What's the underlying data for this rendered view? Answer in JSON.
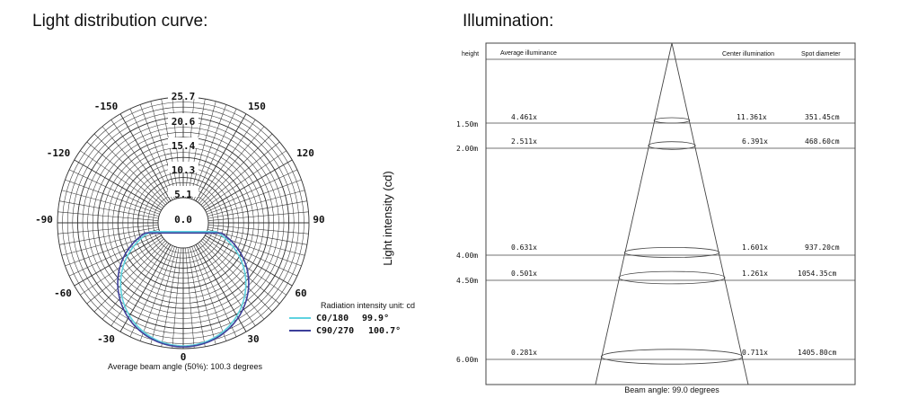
{
  "titles": {
    "light_curve": "Light distribution curve:",
    "illumination": "Illumination:"
  },
  "polar": {
    "radial_labels": [
      "25.7",
      "20.6",
      "15.4",
      "10.3",
      "5.1",
      "0.0"
    ],
    "angle_labels": {
      "a_n150": "-150",
      "a_150": "150",
      "a_n120": "-120",
      "a_120": "120",
      "a_n90": "-90",
      "a_90": "90",
      "a_n60": "-60",
      "a_60": "60",
      "a_n30": "-30",
      "a_30": "30",
      "a_0": "0"
    },
    "ylabel": "Light intensity (cd)",
    "unit_note": "Radiation intensity unit: cd",
    "legend": [
      {
        "label": "C0/180",
        "value": "99.9°",
        "color": "#5fd3e0"
      },
      {
        "label": "C90/270",
        "value": "100.7°",
        "color": "#3d3f9a"
      }
    ],
    "beam_note": "Average beam angle (50%): 100.3 degrees"
  },
  "illumination": {
    "headers": {
      "height": "height",
      "avg": "Average illuminance",
      "center": "Center illumination",
      "spot": "Spot diameter"
    },
    "rows": [
      {
        "height": "1.50m",
        "avg": "4.461x",
        "center": "11.361x",
        "spot": "351.45cm"
      },
      {
        "height": "2.00m",
        "avg": "2.511x",
        "center": "6.391x",
        "spot": "468.60cm"
      },
      {
        "height": "4.00m",
        "avg": "0.631x",
        "center": "1.601x",
        "spot": "937.20cm"
      },
      {
        "height": "4.50m",
        "avg": "0.501x",
        "center": "1.261x",
        "spot": "1054.35cm"
      },
      {
        "height": "6.00m",
        "avg": "0.281x",
        "center": "0.711x",
        "spot": "1405.80cm"
      }
    ],
    "beam_note": "Beam angle: 99.0 degrees"
  }
}
